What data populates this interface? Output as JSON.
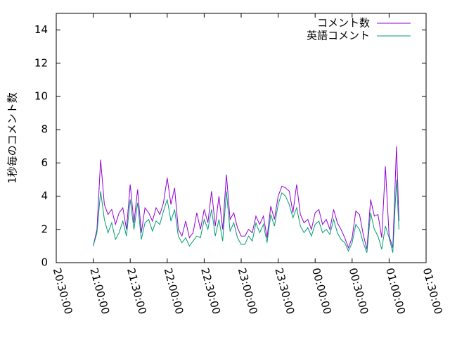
{
  "chart_data": {
    "type": "line",
    "y_label": "1秒毎のコメント数",
    "x": [
      "21:00:00",
      "21:03:00",
      "21:06:00",
      "21:09:00",
      "21:12:00",
      "21:15:00",
      "21:18:00",
      "21:21:00",
      "21:24:00",
      "21:27:00",
      "21:30:00",
      "21:33:00",
      "21:36:00",
      "21:39:00",
      "21:42:00",
      "21:45:00",
      "21:48:00",
      "21:51:00",
      "21:54:00",
      "21:57:00",
      "22:00:00",
      "22:03:00",
      "22:06:00",
      "22:09:00",
      "22:12:00",
      "22:15:00",
      "22:18:00",
      "22:21:00",
      "22:24:00",
      "22:27:00",
      "22:30:00",
      "22:33:00",
      "22:36:00",
      "22:39:00",
      "22:42:00",
      "22:45:00",
      "22:48:00",
      "22:51:00",
      "22:54:00",
      "22:57:00",
      "23:00:00",
      "23:03:00",
      "23:06:00",
      "23:09:00",
      "23:12:00",
      "23:15:00",
      "23:18:00",
      "23:21:00",
      "23:24:00",
      "23:27:00",
      "23:30:00",
      "23:33:00",
      "23:36:00",
      "23:39:00",
      "23:42:00",
      "23:45:00",
      "23:48:00",
      "23:51:00",
      "23:54:00",
      "23:57:00",
      "00:00:00",
      "00:03:00",
      "00:06:00",
      "00:09:00",
      "00:12:00",
      "00:15:00",
      "00:18:00",
      "00:21:00",
      "00:24:00",
      "00:27:00",
      "00:30:00",
      "00:33:00",
      "00:36:00",
      "00:39:00",
      "00:42:00",
      "00:45:00",
      "00:48:00",
      "00:51:00",
      "00:54:00",
      "00:57:00",
      "01:00:00",
      "01:03:00",
      "01:06:00",
      "01:08:00"
    ],
    "series": [
      {
        "name": "コメント数",
        "color": "#9400d3",
        "values": [
          1.0,
          2.0,
          6.2,
          3.5,
          2.9,
          3.2,
          2.3,
          3.0,
          3.3,
          2.0,
          4.7,
          2.4,
          4.4,
          1.8,
          3.3,
          3.0,
          2.5,
          3.3,
          2.9,
          3.6,
          5.1,
          3.5,
          4.5,
          2.0,
          1.6,
          2.5,
          1.5,
          1.8,
          3.0,
          2.0,
          3.2,
          2.4,
          4.3,
          2.2,
          4.0,
          2.0,
          5.3,
          2.6,
          3.0,
          2.1,
          1.6,
          1.6,
          2.0,
          1.8,
          2.8,
          2.3,
          2.8,
          1.5,
          3.4,
          2.6,
          4.0,
          4.6,
          4.5,
          4.3,
          3.0,
          4.7,
          2.9,
          2.4,
          2.6,
          2.0,
          3.0,
          3.2,
          2.3,
          2.6,
          2.0,
          3.2,
          2.4,
          2.0,
          1.5,
          0.9,
          1.5,
          3.1,
          2.9,
          1.7,
          0.8,
          3.8,
          2.8,
          2.9,
          1.5,
          5.8,
          1.6,
          0.9,
          7.0,
          2.5
        ]
      },
      {
        "name": "英語コメント",
        "color": "#009e73",
        "values": [
          1.0,
          1.8,
          4.3,
          2.6,
          1.8,
          2.4,
          1.4,
          1.8,
          2.5,
          1.6,
          3.8,
          2.0,
          3.6,
          1.4,
          2.4,
          2.6,
          1.9,
          2.5,
          2.3,
          3.1,
          3.8,
          2.5,
          3.2,
          1.6,
          1.2,
          1.5,
          1.0,
          1.3,
          1.6,
          1.5,
          2.6,
          2.0,
          3.2,
          1.6,
          2.6,
          1.3,
          4.3,
          1.9,
          2.4,
          1.5,
          1.1,
          1.1,
          1.6,
          1.3,
          2.4,
          1.8,
          2.3,
          1.2,
          2.9,
          2.2,
          3.5,
          4.2,
          4.0,
          3.5,
          2.7,
          3.3,
          2.2,
          1.8,
          2.1,
          1.6,
          2.3,
          2.5,
          1.8,
          2.0,
          1.7,
          2.6,
          1.8,
          1.4,
          1.2,
          0.7,
          1.2,
          2.3,
          2.0,
          1.2,
          0.6,
          3.0,
          2.0,
          1.6,
          0.8,
          2.2,
          1.5,
          0.6,
          5.0,
          2.0
        ]
      }
    ],
    "xlim": [
      "20:30:00",
      "01:30:00"
    ],
    "xticks": [
      "20:30:00",
      "21:00:00",
      "21:30:00",
      "22:00:00",
      "22:30:00",
      "23:00:00",
      "23:30:00",
      "00:00:00",
      "00:30:00",
      "01:00:00",
      "01:30:00"
    ],
    "ylim": [
      0,
      15
    ],
    "yticks": [
      0,
      2,
      4,
      6,
      8,
      10,
      12,
      14
    ],
    "legend": "top-right"
  }
}
